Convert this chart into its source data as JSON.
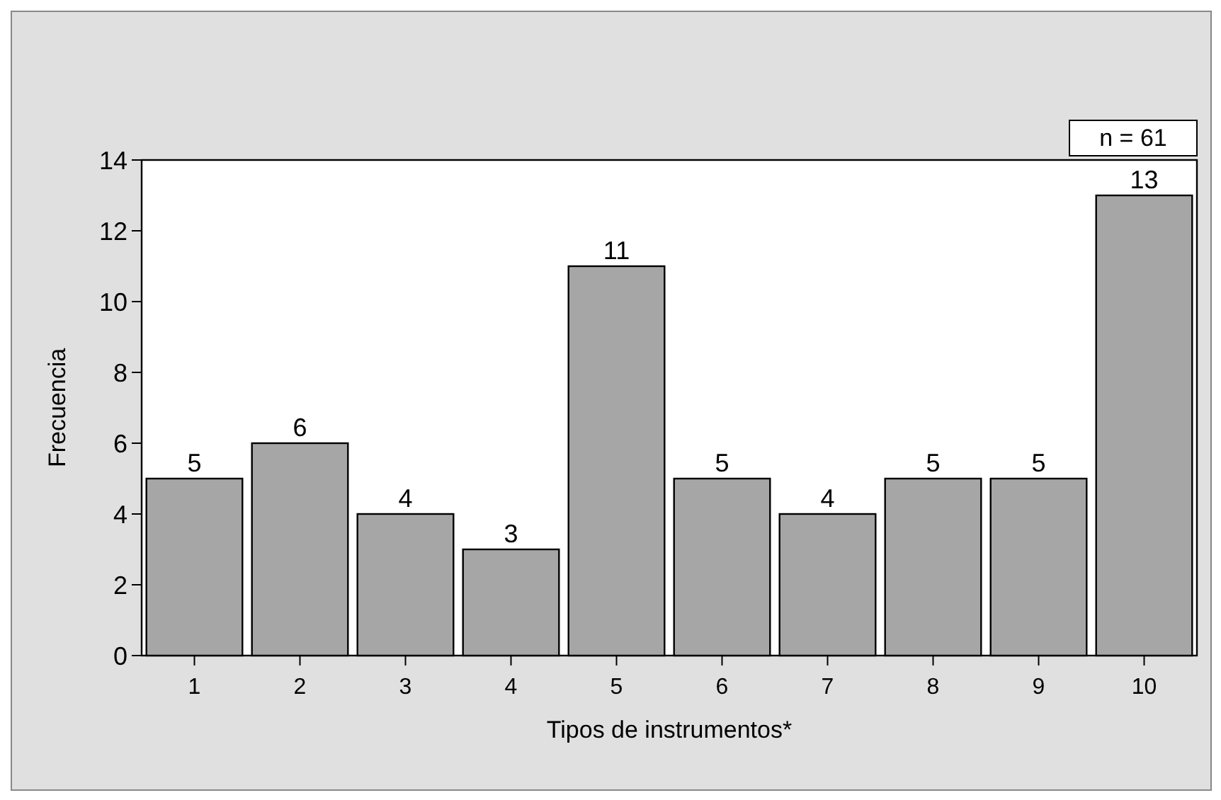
{
  "chart_data": {
    "type": "bar",
    "xlabel": "Tipos de instrumentos*",
    "ylabel": "Frecuencia",
    "categories": [
      "1",
      "2",
      "3",
      "4",
      "5",
      "6",
      "7",
      "8",
      "9",
      "10"
    ],
    "values": [
      5,
      6,
      4,
      3,
      11,
      5,
      4,
      5,
      5,
      13
    ],
    "color": "#a6a6a6",
    "ylim": [
      0,
      14
    ],
    "yticks": [
      0,
      2,
      4,
      6,
      8,
      10,
      12,
      14
    ],
    "grid": false,
    "data_labels": true,
    "annotations": [
      "n = 61"
    ]
  }
}
